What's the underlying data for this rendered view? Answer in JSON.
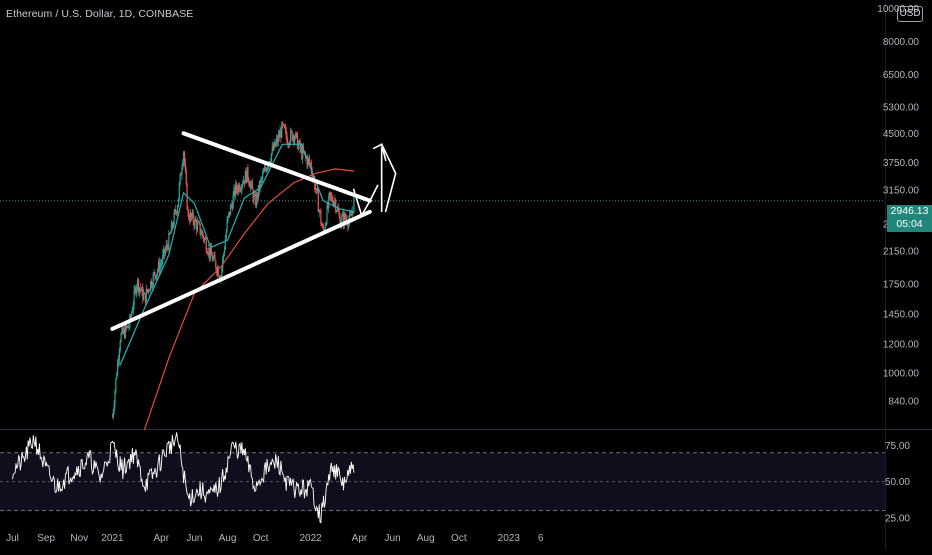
{
  "header": {
    "symbol_title": "Ethereum / U.S. Dollar, 1D, COINBASE",
    "currency": "USD",
    "top_tick": "10000.00"
  },
  "price_tag": {
    "price": "2946.13",
    "countdown": "05:04"
  },
  "colors": {
    "background": "#000000",
    "up_candle": "#26a69a",
    "down_candle": "#ef5350",
    "ma_fast": "#2ab0b7",
    "ma_slow": "#e24a3b",
    "rsi_line": "#ffffff",
    "drawing": "#ffffff",
    "price_line": "#26a69a"
  },
  "chart_data": [
    {
      "type": "line",
      "title": "Ethereum / U.S. Dollar, 1D, COINBASE",
      "scale": "log",
      "ylim": [
        700,
        10000
      ],
      "y_ticks": [
        840,
        1000,
        1200,
        1450,
        1750,
        2150,
        2550,
        3150,
        3750,
        4500,
        5300,
        6500,
        8000
      ],
      "x_ticks": [
        "Jul",
        "Sep",
        "Nov",
        "2021",
        "Apr",
        "Jun",
        "Aug",
        "Oct",
        "2022",
        "Apr",
        "Jun",
        "Aug",
        "Oct",
        "2023",
        "6"
      ],
      "last_price": 2946.13,
      "series": [
        {
          "kind": "candles_close",
          "x": [
            "2021-01-01",
            "2021-01-15",
            "2021-02-01",
            "2021-02-15",
            "2021-03-01",
            "2021-03-15",
            "2021-04-01",
            "2021-04-15",
            "2021-05-01",
            "2021-05-12",
            "2021-05-20",
            "2021-06-01",
            "2021-06-15",
            "2021-07-01",
            "2021-07-20",
            "2021-08-01",
            "2021-08-15",
            "2021-09-01",
            "2021-09-07",
            "2021-09-21",
            "2021-10-01",
            "2021-10-15",
            "2021-11-01",
            "2021-11-10",
            "2021-11-20",
            "2021-12-01",
            "2021-12-15",
            "2022-01-01",
            "2022-01-10",
            "2022-01-24",
            "2022-02-05",
            "2022-02-15",
            "2022-02-24",
            "2022-03-05",
            "2022-03-15",
            "2022-03-22"
          ],
          "values": [
            760,
            1250,
            1350,
            1780,
            1600,
            1800,
            2000,
            2300,
            2900,
            4100,
            2700,
            2600,
            2400,
            2100,
            1850,
            2600,
            3150,
            3400,
            3500,
            2900,
            3300,
            3800,
            4300,
            4650,
            4350,
            4500,
            4000,
            3700,
            3200,
            2400,
            3000,
            2950,
            2600,
            2650,
            2600,
            2946
          ]
        },
        {
          "kind": "moving_average_fast",
          "x": [
            "2021-01-15",
            "2021-03-01",
            "2021-04-15",
            "2021-05-12",
            "2021-06-01",
            "2021-07-01",
            "2021-08-01",
            "2021-09-01",
            "2021-10-01",
            "2021-11-10",
            "2021-12-15",
            "2022-01-24",
            "2022-02-24",
            "2022-03-22"
          ],
          "values": [
            1050,
            1500,
            2100,
            3100,
            2900,
            2200,
            2300,
            3000,
            3200,
            4200,
            4200,
            2950,
            2800,
            2750
          ]
        },
        {
          "kind": "moving_average_slow",
          "x": [
            "2021-03-01",
            "2021-04-15",
            "2021-06-01",
            "2021-07-20",
            "2021-09-01",
            "2021-10-15",
            "2021-12-01",
            "2022-01-10",
            "2022-02-15",
            "2022-03-22"
          ],
          "values": [
            700,
            1100,
            1650,
            1950,
            2400,
            2900,
            3300,
            3500,
            3600,
            3550
          ]
        }
      ],
      "drawings": [
        {
          "kind": "upper_trendline",
          "from": [
            "2021-05-12",
            4500
          ],
          "to": [
            "2022-04-20",
            2950
          ]
        },
        {
          "kind": "lower_trendline",
          "from": [
            "2021-01-01",
            1320
          ],
          "to": [
            "2022-04-20",
            2750
          ]
        },
        {
          "kind": "projection_arrow",
          "from": [
            "2022-03-25",
            2900
          ],
          "to": [
            "2022-05-12",
            4200
          ]
        }
      ]
    },
    {
      "type": "line",
      "title": "RSI",
      "ylim": [
        20,
        85
      ],
      "y_ticks": [
        25,
        50,
        75
      ],
      "bands": [
        30,
        70
      ],
      "series": [
        {
          "name": "",
          "x": [
            "2020-07-01",
            "2020-07-20",
            "2020-08-10",
            "2020-09-01",
            "2020-09-20",
            "2020-10-10",
            "2020-11-01",
            "2020-11-20",
            "2020-12-10",
            "2021-01-01",
            "2021-01-20",
            "2021-02-10",
            "2021-03-01",
            "2021-03-20",
            "2021-04-10",
            "2021-05-01",
            "2021-05-20",
            "2021-06-10",
            "2021-07-01",
            "2021-07-20",
            "2021-08-10",
            "2021-09-01",
            "2021-09-20",
            "2021-10-10",
            "2021-11-01",
            "2021-11-20",
            "2021-12-10",
            "2022-01-01",
            "2022-01-20",
            "2022-02-10",
            "2022-03-01",
            "2022-03-22"
          ],
          "values": [
            58,
            64,
            80,
            58,
            46,
            54,
            60,
            66,
            52,
            75,
            58,
            70,
            48,
            56,
            72,
            80,
            38,
            44,
            40,
            48,
            74,
            70,
            46,
            58,
            64,
            48,
            44,
            46,
            26,
            62,
            48,
            60
          ]
        }
      ]
    }
  ]
}
